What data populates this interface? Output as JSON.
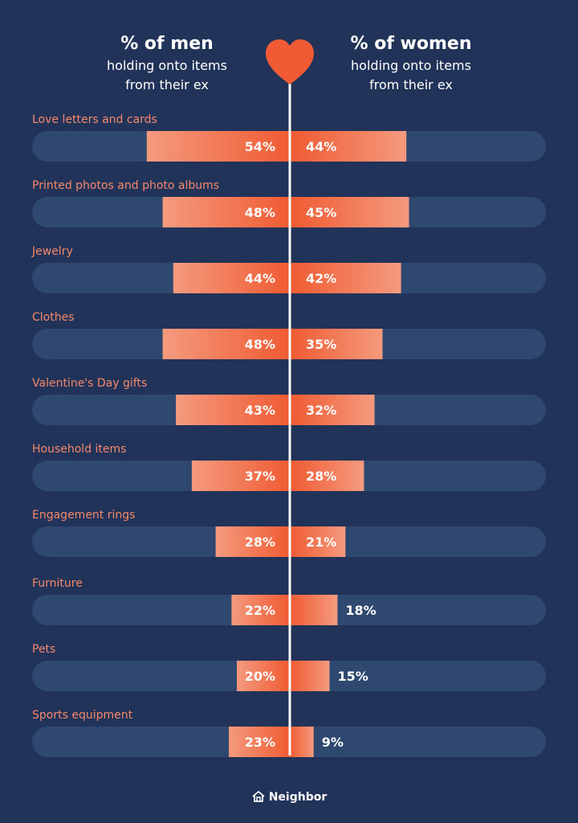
{
  "colors": {
    "background": "#22335a",
    "track": "#2f4870",
    "bar_light": "#f59a7e",
    "bar_dark": "#ef5b32",
    "accent_text": "#f5886a",
    "heart": "#f05a35",
    "divider": "#ffffff"
  },
  "header": {
    "left_title": "% of men",
    "left_subtitle_1": "holding onto items",
    "left_subtitle_2": "from their ex",
    "right_title": "% of women",
    "right_subtitle_1": "holding onto items",
    "right_subtitle_2": "from their ex"
  },
  "footer": {
    "logo_icon": "house-icon",
    "brand": "Neighbor"
  },
  "chart_data": {
    "type": "bar",
    "orientation": "horizontal-diverging",
    "value_unit": "%",
    "categories": [
      "Love letters and cards",
      "Printed photos and photo albums",
      "Jewelry",
      "Clothes",
      "Valentine's Day gifts",
      "Household items",
      "Engagement rings",
      "Furniture",
      "Pets",
      "Sports equipment"
    ],
    "series": [
      {
        "name": "% of men",
        "side": "left",
        "values": [
          54,
          48,
          44,
          48,
          43,
          37,
          28,
          22,
          20,
          23
        ]
      },
      {
        "name": "% of women",
        "side": "right",
        "values": [
          44,
          45,
          42,
          35,
          32,
          28,
          21,
          18,
          15,
          9
        ]
      }
    ],
    "xlim": [
      0,
      100
    ]
  }
}
